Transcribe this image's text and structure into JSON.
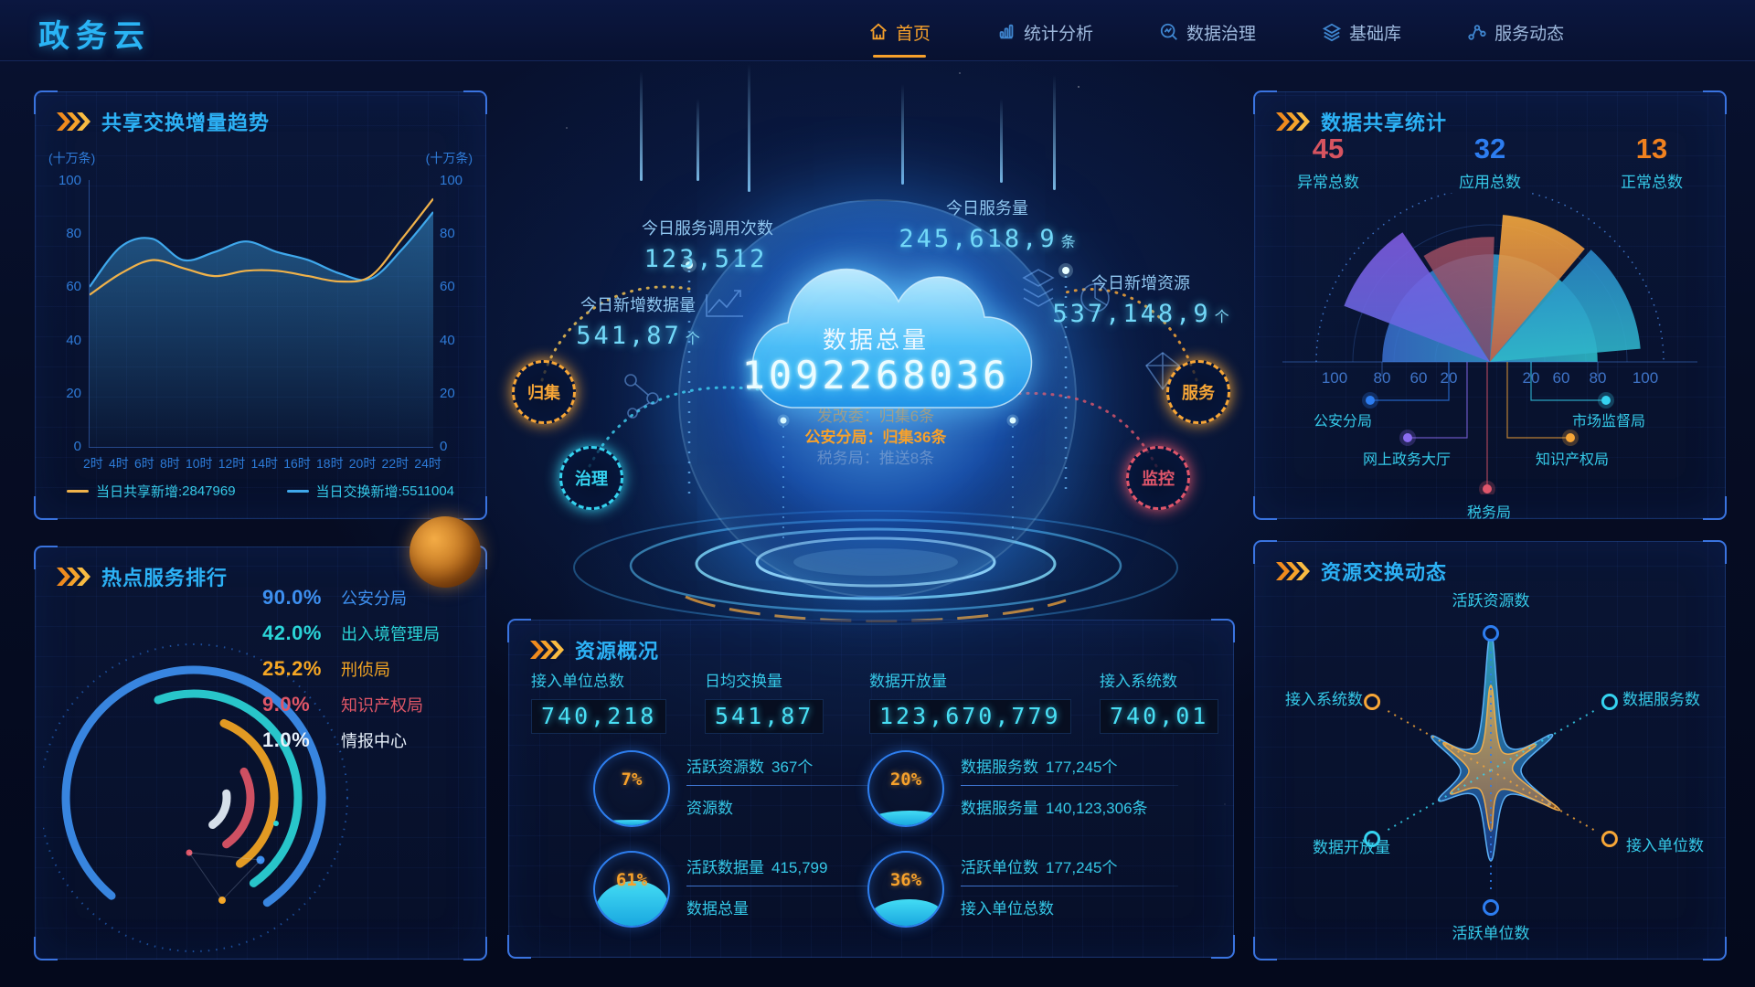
{
  "header": {
    "logo": "政务云",
    "nav": [
      {
        "label": "首页",
        "icon": "home-icon",
        "active": true
      },
      {
        "label": "统计分析",
        "icon": "bar-chart-icon",
        "active": false
      },
      {
        "label": "数据治理",
        "icon": "search-wave-icon",
        "active": false
      },
      {
        "label": "基础库",
        "icon": "layers-icon",
        "active": false
      },
      {
        "label": "服务动态",
        "icon": "network-icon",
        "active": false
      }
    ]
  },
  "panels": {
    "trend": {
      "title": "共享交换增量趋势",
      "unit": "(十万条)"
    },
    "rank": {
      "title": "热点服务排行"
    },
    "share": {
      "title": "数据共享统计",
      "stats": [
        {
          "value": "45",
          "label": "异常总数",
          "color": "#d75460"
        },
        {
          "value": "32",
          "label": "应用总数",
          "color": "#2d7df0"
        },
        {
          "value": "13",
          "label": "正常总数",
          "color": "#f0811f"
        }
      ]
    },
    "resource": {
      "title": "资源概况",
      "stats": [
        {
          "label": "接入单位总数",
          "value": "740,218"
        },
        {
          "label": "日均交换量",
          "value": "541,87"
        },
        {
          "label": "数据开放量",
          "value": "123,670,779"
        },
        {
          "label": "接入系统数",
          "value": "740,01"
        }
      ],
      "gauges": [
        {
          "pct": "7%",
          "percent": 7,
          "top_label": "活跃资源数",
          "top_value": "367个",
          "bottom_label": "资源数",
          "bottom_value": ""
        },
        {
          "pct": "20%",
          "percent": 20,
          "top_label": "数据服务数",
          "top_value": "177,245个",
          "bottom_label": "数据服务量",
          "bottom_value": "140,123,306条"
        },
        {
          "pct": "61%",
          "percent": 61,
          "top_label": "活跃数据量",
          "top_value": "415,799",
          "bottom_label": "数据总量",
          "bottom_value": ""
        },
        {
          "pct": "36%",
          "percent": 36,
          "top_label": "活跃单位数",
          "top_value": "177,245个",
          "bottom_label": "接入单位总数",
          "bottom_value": ""
        }
      ]
    },
    "radar": {
      "title": "资源交换动态"
    }
  },
  "center": {
    "total_label": "数据总量",
    "total_value": "1092268036",
    "ticker": [
      {
        "text": "发改委：归集6条",
        "color": "#f7a637",
        "dim": true
      },
      {
        "text": "公安分局：归集36条",
        "color": "#f7a12b",
        "dim": false
      },
      {
        "text": "税务局：推送8条",
        "color": "#9fb6d8",
        "dim": true
      }
    ],
    "callouts": [
      {
        "label": "今日服务调用次数",
        "value": "123,512",
        "unit": ""
      },
      {
        "label": "今日服务量",
        "value": "245,618,9",
        "unit": "条"
      },
      {
        "label": "今日新增数据量",
        "value": "541,87",
        "unit": "个"
      },
      {
        "label": "今日新增资源",
        "value": "537,148,9",
        "unit": "个"
      }
    ],
    "badges": [
      {
        "label": "归集",
        "color": "#f7a637"
      },
      {
        "label": "治理",
        "color": "#35d3f0"
      },
      {
        "label": "服务",
        "color": "#f7a637"
      },
      {
        "label": "监控",
        "color": "#e0566b"
      }
    ]
  },
  "chart_data": [
    {
      "id": "trend",
      "type": "line",
      "title": "共享交换增量趋势",
      "ylabel": "(十万条)",
      "ylim": [
        0,
        100
      ],
      "yticks": [
        100,
        80,
        60,
        40,
        20,
        0
      ],
      "x": [
        "2时",
        "4时",
        "6时",
        "8时",
        "10时",
        "12时",
        "14时",
        "16时",
        "18时",
        "20时",
        "22时",
        "24时"
      ],
      "series": [
        {
          "name": "当日共享新增",
          "legend_value": "2847969",
          "color": "#f0b24a",
          "area": false,
          "values": [
            57,
            65,
            70,
            67,
            64,
            66,
            66,
            64,
            62,
            64,
            78,
            93
          ]
        },
        {
          "name": "当日交换新增",
          "legend_value": "5511004",
          "color": "#3fa8ec",
          "area": true,
          "values": [
            60,
            75,
            78,
            70,
            73,
            77,
            73,
            70,
            65,
            63,
            74,
            88
          ]
        }
      ],
      "legend_position": "bottom"
    },
    {
      "id": "share_rose",
      "type": "half-rose",
      "title": "数据共享统计",
      "max": 100,
      "scale_left": [
        "100",
        "80",
        "60",
        "20"
      ],
      "scale_right": [
        "20",
        "60",
        "80",
        "100"
      ],
      "sectors": [
        {
          "label": "公安分局",
          "value": 62,
          "angles": [
            0,
            180
          ],
          "color": "#3a6fd0",
          "color2": "#2fc4cf",
          "dot": "#2d7df0"
        },
        {
          "label": "市场监督局",
          "value": 87,
          "angles": [
            5,
            48
          ],
          "color": "#2a86c8",
          "color2": "#2fb8c9",
          "dot": "#35d3f0"
        },
        {
          "label": "知识产权局",
          "value": 85,
          "angles": [
            50,
            85
          ],
          "color": "#f6a93c",
          "color2": "#c06148",
          "dot": "#f7a637"
        },
        {
          "label": "税务局",
          "value": 72,
          "angles": [
            88,
            122
          ],
          "color": "#a95163",
          "color2": "#7e4668",
          "dot": "#e0566b"
        },
        {
          "label": "网上政务大厅",
          "value": 90,
          "angles": [
            124,
            159
          ],
          "color": "#7e5be0",
          "color2": "#5f6be0",
          "dot": "#8a6cf0"
        }
      ]
    },
    {
      "id": "exchange_radar",
      "type": "radar",
      "title": "资源交换动态",
      "axes": [
        {
          "label": "活跃资源数",
          "color": "#2d7df0"
        },
        {
          "label": "数据服务数",
          "color": "#35d3f0"
        },
        {
          "label": "接入单位数",
          "color": "#f7a637"
        },
        {
          "label": "活跃单位数",
          "color": "#2d7df0"
        },
        {
          "label": "数据开放量",
          "color": "#35d3f0"
        },
        {
          "label": "接入系统数",
          "color": "#f7a637"
        }
      ],
      "series": [
        {
          "name": "exchange-blue",
          "color": "#3f8cf0",
          "valley": 0.22,
          "values": [
            1.0,
            0.52,
            0.5,
            0.66,
            0.44,
            0.5
          ]
        },
        {
          "name": "exchange-orange",
          "color": "#f7a637",
          "valley": 0.16,
          "values": [
            0.62,
            0.38,
            0.58,
            0.44,
            0.34,
            0.4
          ]
        }
      ]
    },
    {
      "id": "hot_rank",
      "type": "arc-rank",
      "title": "热点服务排行",
      "items": [
        {
          "pct": "90.0%",
          "value": 90.0,
          "label": "公安分局",
          "color": "#3d8fef"
        },
        {
          "pct": "42.0%",
          "value": 42.0,
          "label": "出入境管理局",
          "color": "#2bd5d8"
        },
        {
          "pct": "25.2%",
          "value": 25.2,
          "label": "刑侦局",
          "color": "#f5a623"
        },
        {
          "pct": "9.0%",
          "value": 9.0,
          "label": "知识产权局",
          "color": "#e05667"
        },
        {
          "pct": "1.0%",
          "value": 1.0,
          "label": "情报中心",
          "color": "#e8f1fb"
        }
      ]
    }
  ]
}
